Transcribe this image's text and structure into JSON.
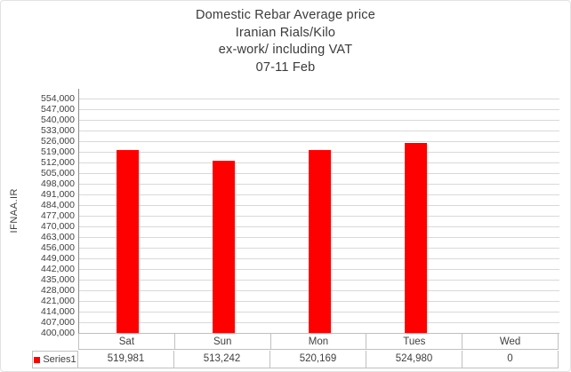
{
  "title": {
    "lines": [
      "Domestic Rebar Average price",
      "Iranian Rials/Kilo",
      "ex-work/ including VAT",
      "07-11 Feb"
    ]
  },
  "legend": {
    "label": "Series1",
    "swatch_color": "#ff0000"
  },
  "table": {
    "display_values": [
      "519,981",
      "513,242",
      "520,169",
      "524,980",
      "0"
    ]
  },
  "colors": {
    "bar": "#ff0000",
    "gridline": "#d9d9d9",
    "axis_line": "#8c8c8c",
    "table_border": "#c0c0c0",
    "text": "#404040"
  },
  "chart_data": {
    "type": "bar",
    "title": "Domestic Rebar Average price - Iranian Rials/Kilo - ex-work/ including VAT - 07-11 Feb",
    "categories": [
      "Sat",
      "Sun",
      "Mon",
      "Tues",
      "Wed"
    ],
    "series": [
      {
        "name": "Series1",
        "values": [
          519981,
          513242,
          520169,
          524980,
          0
        ]
      }
    ],
    "xlabel": "",
    "ylabel": "IFNAA.IR",
    "ylim": [
      400000,
      554000
    ],
    "ytick_step": 7000,
    "grid": "horizontal",
    "legend_position": "bottom-left-data-table",
    "bar_color": "#ff0000"
  }
}
